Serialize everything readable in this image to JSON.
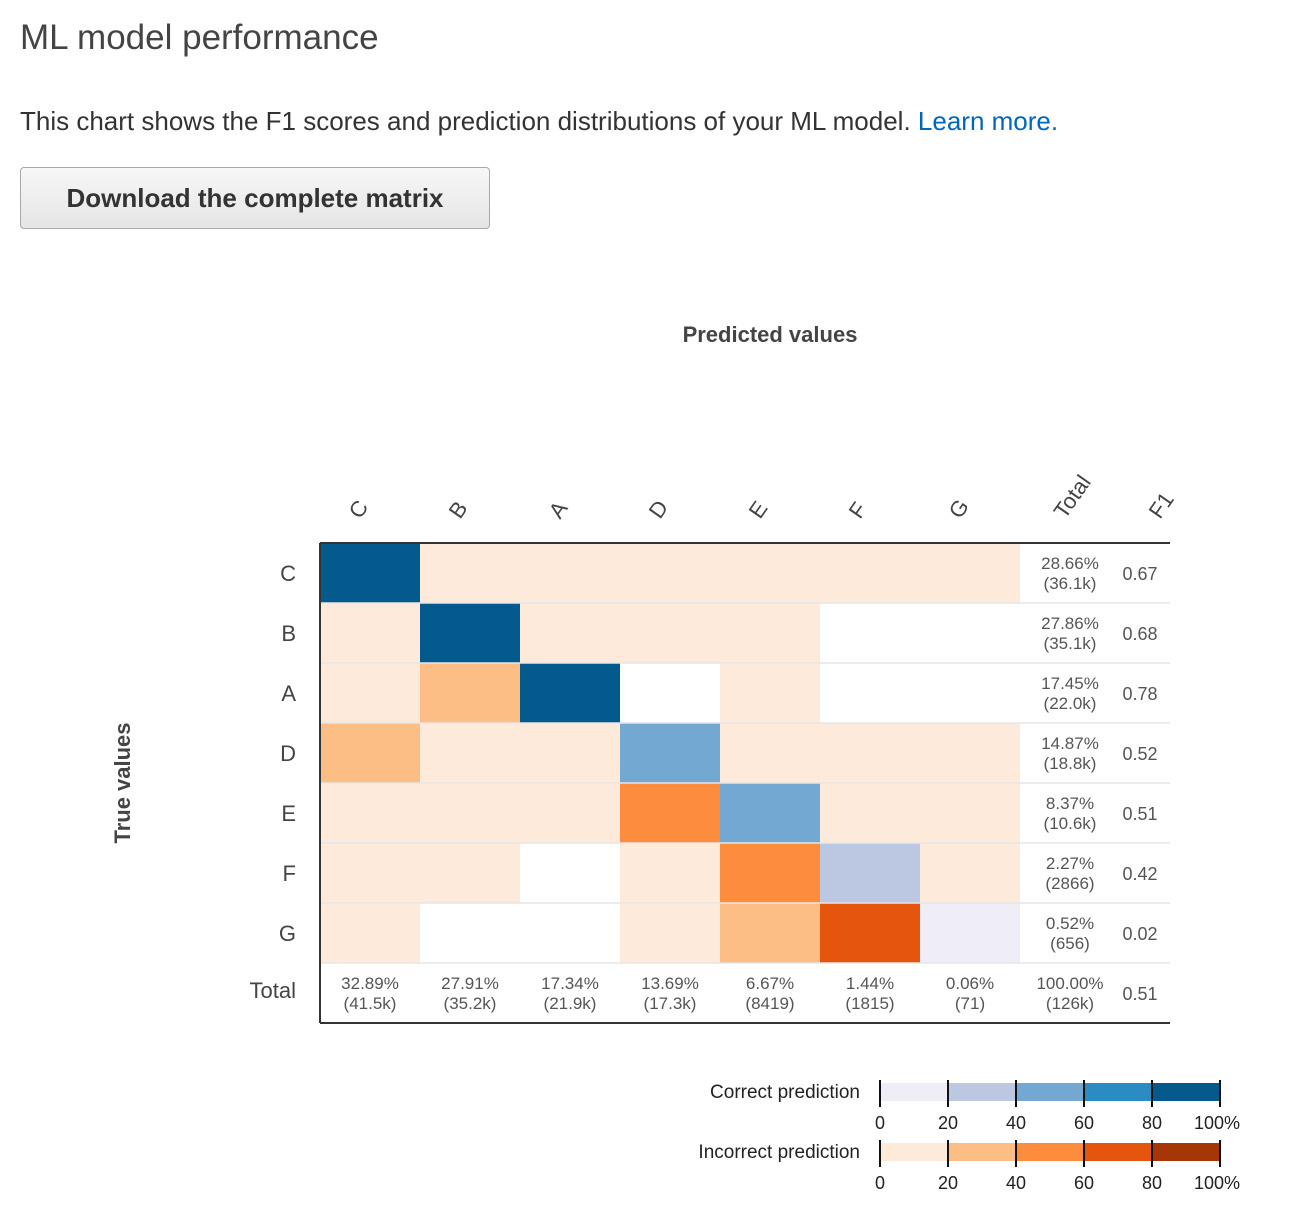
{
  "page": {
    "title": "ML model performance",
    "description": "This chart shows the F1 scores and prediction distributions of your ML model.",
    "learn_more": "Learn more.",
    "download_label": "Download the complete matrix"
  },
  "chart_data": {
    "type": "heatmap",
    "xlabel": "Predicted values",
    "ylabel": "True values",
    "columns": [
      "C",
      "B",
      "A",
      "D",
      "E",
      "F",
      "G"
    ],
    "rows": [
      "C",
      "B",
      "A",
      "D",
      "E",
      "F",
      "G"
    ],
    "total_label": "Total",
    "f1_label": "F1",
    "cell_levels": [
      [
        "c80",
        "i0",
        "i0",
        "i0",
        "i0",
        "i0",
        "i0"
      ],
      [
        "i0",
        "c80",
        "i0",
        "i0",
        "i0",
        "none",
        "none"
      ],
      [
        "i0",
        "i20",
        "c80",
        "none",
        "i0",
        "none",
        "none"
      ],
      [
        "i20",
        "i0",
        "i0",
        "c40",
        "i0",
        "i0",
        "i0"
      ],
      [
        "i0",
        "i0",
        "i0",
        "i40",
        "c40",
        "i0",
        "i0"
      ],
      [
        "i0",
        "i0",
        "none",
        "i0",
        "i40",
        "c20",
        "i0"
      ],
      [
        "i0",
        "none",
        "none",
        "i0",
        "i20",
        "i60",
        "c0"
      ]
    ],
    "row_totals": [
      {
        "pct": "28.66%",
        "count": "(36.1k)"
      },
      {
        "pct": "27.86%",
        "count": "(35.1k)"
      },
      {
        "pct": "17.45%",
        "count": "(22.0k)"
      },
      {
        "pct": "14.87%",
        "count": "(18.8k)"
      },
      {
        "pct": "8.37%",
        "count": "(10.6k)"
      },
      {
        "pct": "2.27%",
        "count": "(2866)"
      },
      {
        "pct": "0.52%",
        "count": "(656)"
      }
    ],
    "f1_scores": [
      "0.67",
      "0.68",
      "0.78",
      "0.52",
      "0.51",
      "0.42",
      "0.02"
    ],
    "column_totals": [
      {
        "pct": "32.89%",
        "count": "(41.5k)"
      },
      {
        "pct": "27.91%",
        "count": "(35.2k)"
      },
      {
        "pct": "17.34%",
        "count": "(21.9k)"
      },
      {
        "pct": "13.69%",
        "count": "(17.3k)"
      },
      {
        "pct": "6.67%",
        "count": "(8419)"
      },
      {
        "pct": "1.44%",
        "count": "(1815)"
      },
      {
        "pct": "0.06%",
        "count": "(71)"
      }
    ],
    "grand_total": {
      "pct": "100.00%",
      "count": "(126k)"
    },
    "overall_f1": "0.51",
    "legend": {
      "correct_label": "Correct prediction",
      "incorrect_label": "Incorrect prediction",
      "ticks": [
        "0",
        "20",
        "40",
        "60",
        "80",
        "100%"
      ],
      "correct_colors": [
        "#efedf5",
        "#bcc7e2",
        "#73a8d3",
        "#2b8cc4",
        "#045a8d"
      ],
      "incorrect_colors": [
        "#fdeadb",
        "#fdbe86",
        "#fd8d3c",
        "#e6550d",
        "#a63603"
      ]
    }
  }
}
